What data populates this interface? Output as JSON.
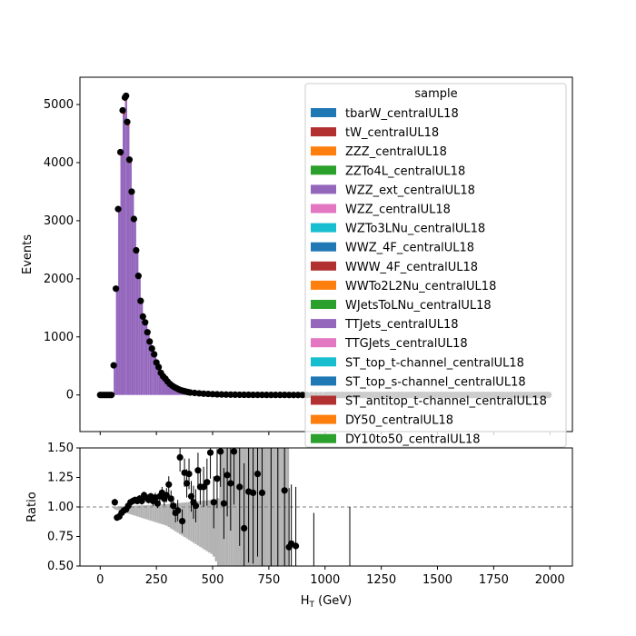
{
  "chart_data": {
    "type": "bar",
    "main": {
      "ylabel": "Events",
      "xlim": [
        -90,
        2100
      ],
      "ylim": [
        -630,
        5470
      ],
      "yticks": [
        0,
        1000,
        2000,
        3000,
        4000,
        5000
      ],
      "stack_color": "#9467bd",
      "edge_color": "#d62728",
      "data_points": [
        {
          "x": 0,
          "y": 0
        },
        {
          "x": 10,
          "y": 0
        },
        {
          "x": 20,
          "y": 0
        },
        {
          "x": 30,
          "y": 0
        },
        {
          "x": 40,
          "y": 0
        },
        {
          "x": 50,
          "y": 0
        },
        {
          "x": 60,
          "y": 510
        },
        {
          "x": 70,
          "y": 1830
        },
        {
          "x": 80,
          "y": 3200
        },
        {
          "x": 90,
          "y": 4180
        },
        {
          "x": 100,
          "y": 4900
        },
        {
          "x": 110,
          "y": 5120
        },
        {
          "x": 115,
          "y": 5150
        },
        {
          "x": 120,
          "y": 4700
        },
        {
          "x": 130,
          "y": 4050
        },
        {
          "x": 140,
          "y": 3500
        },
        {
          "x": 150,
          "y": 3030
        },
        {
          "x": 160,
          "y": 2490
        },
        {
          "x": 170,
          "y": 2050
        },
        {
          "x": 180,
          "y": 1620
        },
        {
          "x": 190,
          "y": 1350
        },
        {
          "x": 200,
          "y": 1250
        },
        {
          "x": 210,
          "y": 1080
        },
        {
          "x": 220,
          "y": 920
        },
        {
          "x": 230,
          "y": 800
        },
        {
          "x": 240,
          "y": 700
        },
        {
          "x": 250,
          "y": 560
        },
        {
          "x": 260,
          "y": 480
        },
        {
          "x": 270,
          "y": 380
        },
        {
          "x": 280,
          "y": 320
        },
        {
          "x": 290,
          "y": 280
        },
        {
          "x": 300,
          "y": 230
        },
        {
          "x": 310,
          "y": 190
        },
        {
          "x": 320,
          "y": 160
        },
        {
          "x": 330,
          "y": 135
        },
        {
          "x": 340,
          "y": 115
        },
        {
          "x": 350,
          "y": 95
        },
        {
          "x": 360,
          "y": 80
        },
        {
          "x": 370,
          "y": 70
        },
        {
          "x": 380,
          "y": 60
        },
        {
          "x": 390,
          "y": 50
        },
        {
          "x": 400,
          "y": 42
        },
        {
          "x": 420,
          "y": 35
        },
        {
          "x": 440,
          "y": 28
        },
        {
          "x": 460,
          "y": 22
        },
        {
          "x": 480,
          "y": 18
        },
        {
          "x": 500,
          "y": 14
        },
        {
          "x": 520,
          "y": 11
        },
        {
          "x": 540,
          "y": 9
        },
        {
          "x": 560,
          "y": 7
        },
        {
          "x": 580,
          "y": 6
        },
        {
          "x": 600,
          "y": 5
        },
        {
          "x": 620,
          "y": 4
        },
        {
          "x": 640,
          "y": 3
        },
        {
          "x": 660,
          "y": 3
        },
        {
          "x": 680,
          "y": 2
        },
        {
          "x": 700,
          "y": 2
        },
        {
          "x": 720,
          "y": 2
        },
        {
          "x": 740,
          "y": 1
        },
        {
          "x": 760,
          "y": 1
        },
        {
          "x": 780,
          "y": 1
        },
        {
          "x": 800,
          "y": 1
        },
        {
          "x": 820,
          "y": 1
        },
        {
          "x": 840,
          "y": 0
        },
        {
          "x": 860,
          "y": 0
        },
        {
          "x": 880,
          "y": 0
        },
        {
          "x": 900,
          "y": 0
        },
        {
          "x": 920,
          "y": 0
        },
        {
          "x": 940,
          "y": 0
        },
        {
          "x": 960,
          "y": 0
        },
        {
          "x": 980,
          "y": 0
        },
        {
          "x": 1000,
          "y": 0
        }
      ]
    },
    "legend": {
      "title": "sample",
      "location": "top-right",
      "entries": [
        {
          "label": "tbarW_centralUL18",
          "color": "#1f77b4"
        },
        {
          "label": "tW_centralUL18",
          "color": "#b23030"
        },
        {
          "label": "ZZZ_centralUL18",
          "color": "#ff7f0e"
        },
        {
          "label": "ZZTo4L_centralUL18",
          "color": "#2ca02c"
        },
        {
          "label": "WZZ_ext_centralUL18",
          "color": "#9467bd"
        },
        {
          "label": "WZZ_centralUL18",
          "color": "#e377c2"
        },
        {
          "label": "WZTo3LNu_centralUL18",
          "color": "#17becf"
        },
        {
          "label": "WWZ_4F_centralUL18",
          "color": "#1f77b4"
        },
        {
          "label": "WWW_4F_centralUL18",
          "color": "#b23030"
        },
        {
          "label": "WWTo2L2Nu_centralUL18",
          "color": "#ff7f0e"
        },
        {
          "label": "WJetsToLNu_centralUL18",
          "color": "#2ca02c"
        },
        {
          "label": "TTJets_centralUL18",
          "color": "#9467bd"
        },
        {
          "label": "TTGJets_centralUL18",
          "color": "#e377c2"
        },
        {
          "label": "ST_top_t-channel_centralUL18",
          "color": "#17becf"
        },
        {
          "label": "ST_top_s-channel_centralUL18",
          "color": "#1f77b4"
        },
        {
          "label": "ST_antitop_t-channel_centralUL18",
          "color": "#b23030"
        },
        {
          "label": "DY50_centralUL18",
          "color": "#ff7f0e"
        },
        {
          "label": "DY10to50_centralUL18",
          "color": "#2ca02c"
        }
      ]
    },
    "ratio": {
      "ylabel": "Ratio",
      "xlabel": "H",
      "xlabel_sub": "T",
      "xlabel_unit": " (GeV)",
      "xlim": [
        -90,
        2100
      ],
      "ylim": [
        0.5,
        1.5
      ],
      "yticks": [
        "0.50",
        "0.75",
        "1.00",
        "1.25",
        "1.50"
      ],
      "ytick_values": [
        0.5,
        0.75,
        1.0,
        1.25,
        1.5
      ],
      "xticks": [
        0,
        250,
        500,
        750,
        1000,
        1250,
        1500,
        1750,
        2000
      ],
      "reference_line": 1.0,
      "points": [
        {
          "x": 65,
          "y": 1.04,
          "err": 0.03
        },
        {
          "x": 75,
          "y": 0.91,
          "err": 0.02
        },
        {
          "x": 85,
          "y": 0.92,
          "err": 0.02
        },
        {
          "x": 95,
          "y": 0.95,
          "err": 0.02
        },
        {
          "x": 105,
          "y": 0.97,
          "err": 0.02
        },
        {
          "x": 115,
          "y": 0.98,
          "err": 0.02
        },
        {
          "x": 125,
          "y": 1.01,
          "err": 0.02
        },
        {
          "x": 135,
          "y": 1.04,
          "err": 0.02
        },
        {
          "x": 145,
          "y": 1.05,
          "err": 0.02
        },
        {
          "x": 155,
          "y": 1.06,
          "err": 0.02
        },
        {
          "x": 165,
          "y": 1.05,
          "err": 0.02
        },
        {
          "x": 175,
          "y": 1.07,
          "err": 0.03
        },
        {
          "x": 185,
          "y": 1.05,
          "err": 0.03
        },
        {
          "x": 195,
          "y": 1.1,
          "err": 0.03
        },
        {
          "x": 205,
          "y": 1.08,
          "err": 0.03
        },
        {
          "x": 215,
          "y": 1.06,
          "err": 0.03
        },
        {
          "x": 225,
          "y": 1.09,
          "err": 0.03
        },
        {
          "x": 235,
          "y": 1.05,
          "err": 0.04
        },
        {
          "x": 245,
          "y": 1.08,
          "err": 0.04
        },
        {
          "x": 255,
          "y": 1.03,
          "err": 0.04
        },
        {
          "x": 265,
          "y": 1.09,
          "err": 0.05
        },
        {
          "x": 275,
          "y": 1.12,
          "err": 0.05
        },
        {
          "x": 285,
          "y": 1.07,
          "err": 0.06
        },
        {
          "x": 295,
          "y": 1.1,
          "err": 0.06
        },
        {
          "x": 305,
          "y": 1.19,
          "err": 0.07
        },
        {
          "x": 315,
          "y": 1.07,
          "err": 0.07
        },
        {
          "x": 325,
          "y": 1.01,
          "err": 0.08
        },
        {
          "x": 335,
          "y": 0.95,
          "err": 0.08
        },
        {
          "x": 345,
          "y": 0.97,
          "err": 0.09
        },
        {
          "x": 355,
          "y": 1.42,
          "err": 0.12
        },
        {
          "x": 365,
          "y": 0.88,
          "err": 0.1
        },
        {
          "x": 375,
          "y": 1.29,
          "err": 0.12
        },
        {
          "x": 385,
          "y": 1.2,
          "err": 0.12
        },
        {
          "x": 395,
          "y": 1.28,
          "err": 0.13
        },
        {
          "x": 405,
          "y": 1.09,
          "err": 0.13
        },
        {
          "x": 415,
          "y": 1.04,
          "err": 0.14
        },
        {
          "x": 425,
          "y": 1.01,
          "err": 0.14
        },
        {
          "x": 435,
          "y": 1.31,
          "err": 0.15
        },
        {
          "x": 445,
          "y": 1.17,
          "err": 0.15
        },
        {
          "x": 460,
          "y": 1.17,
          "err": 0.17
        },
        {
          "x": 475,
          "y": 1.21,
          "err": 0.2
        },
        {
          "x": 490,
          "y": 1.46,
          "err": 0.22
        },
        {
          "x": 505,
          "y": 1.04,
          "err": 0.22
        },
        {
          "x": 520,
          "y": 1.24,
          "err": 0.25
        },
        {
          "x": 535,
          "y": 1.47,
          "err": 0.3
        },
        {
          "x": 550,
          "y": 1.03,
          "err": 0.3
        },
        {
          "x": 565,
          "y": 1.27,
          "err": 0.35
        },
        {
          "x": 580,
          "y": 1.2,
          "err": 0.4
        },
        {
          "x": 595,
          "y": 1.47,
          "err": 0.45
        },
        {
          "x": 620,
          "y": 1.17,
          "err": 0.5
        },
        {
          "x": 640,
          "y": 0.82,
          "err": 0.55
        },
        {
          "x": 660,
          "y": 1.13,
          "err": 0.6
        },
        {
          "x": 680,
          "y": 1.12,
          "err": 0.6
        },
        {
          "x": 700,
          "y": 1.28,
          "err": 0.7
        },
        {
          "x": 720,
          "y": 1.12,
          "err": 0.8
        },
        {
          "x": 820,
          "y": 1.14,
          "err": 0.8
        },
        {
          "x": 840,
          "y": 0.66,
          "err": 0.5
        },
        {
          "x": 850,
          "y": 0.69,
          "err": 0.5
        },
        {
          "x": 870,
          "y": 0.67,
          "err": 0.5
        }
      ],
      "error_lines_x": [
        760,
        790,
        950,
        1110
      ]
    }
  }
}
